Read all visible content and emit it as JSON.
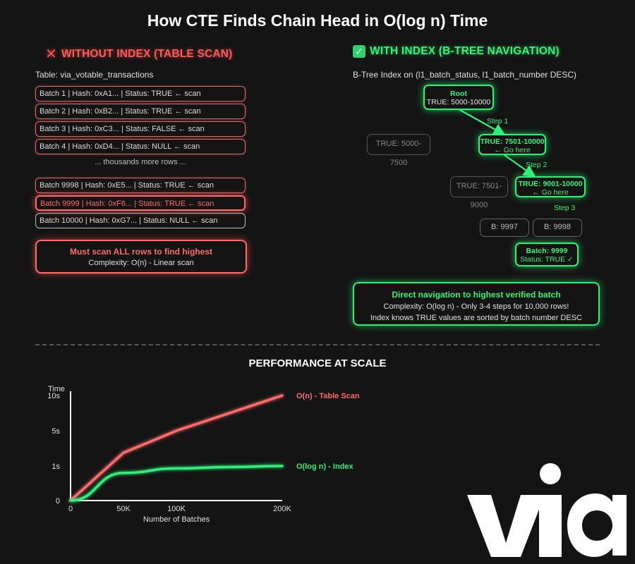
{
  "title": "How CTE Finds Chain Head in O(log n) Time",
  "left": {
    "heading": "WITHOUT INDEX (TABLE SCAN)",
    "heading_icon": "cross-mark-icon",
    "table_label": "Table: via_votable_transactions",
    "rows": [
      "Batch 1 | Hash: 0xA1... | Status: TRUE ← scan",
      "Batch 2 | Hash: 0xB2... | Status: TRUE ← scan",
      "Batch 3 | Hash: 0xC3... | Status: FALSE ← scan",
      "Batch 4 | Hash: 0xD4... | Status: NULL ← scan"
    ],
    "more_rows": "... thousands more rows ...",
    "rows_end": [
      "Batch 9998 | Hash: 0xE5... | Status: TRUE ← scan",
      "Batch 9999 | Hash: 0xF6... | Status: TRUE ← scan",
      "Batch 10000 | Hash: 0xG7... | Status: NULL ← scan"
    ],
    "summary_title": "Must scan ALL rows to find highest",
    "summary_complexity": "Complexity: O(n) - Linear scan"
  },
  "right": {
    "heading": "WITH INDEX (B-TREE NAVIGATION)",
    "heading_icon": "check-mark-icon",
    "index_label": "B-Tree Index on (l1_batch_status, l1_batch_number DESC)",
    "root": {
      "line1": "Root",
      "line2": "TRUE: 5000-10000"
    },
    "left_child": "TRUE: 5000-7500",
    "step1": "Step 1",
    "node2": {
      "line1": "TRUE: 7501-10000",
      "line2": "← Go here"
    },
    "step2": "Step 2",
    "sibling2": "TRUE: 7501-9000",
    "node3": {
      "line1": "TRUE: 9001-10000",
      "line2": "← Go here"
    },
    "step3": "Step 3",
    "leaf1": "B: 9997",
    "leaf2": "B: 9998",
    "target": {
      "line1": "Batch: 9999",
      "line2": "Status: TRUE ✓"
    },
    "summary_title": "Direct navigation to highest verified batch",
    "summary_complexity": "Complexity: O(log n) - Only 3-4 steps for 10,000 rows!",
    "summary_note": "Index knows TRUE values are sorted by batch number DESC"
  },
  "performance_title": "PERFORMANCE AT SCALE",
  "chart_data": {
    "type": "line",
    "ylabel": "Time",
    "xlabel": "Number of Batches",
    "x": [
      0,
      50000,
      100000,
      150000,
      200000
    ],
    "x_tick_labels": [
      "0",
      "50K",
      "100K",
      "200K"
    ],
    "x_tick_values": [
      0,
      50000,
      100000,
      200000
    ],
    "y_tick_labels": [
      "0",
      "1s",
      "5s",
      "10s"
    ],
    "series": [
      {
        "name": "O(n) - Table Scan",
        "color": "#ff6b6b",
        "values": [
          0,
          2.5,
          5,
          7.5,
          10
        ]
      },
      {
        "name": "O(log n) - Index",
        "color": "#2ff07a",
        "values": [
          0,
          0.8,
          0.93,
          0.97,
          1.0
        ]
      }
    ]
  },
  "colors": {
    "red": "#ff6b6b",
    "green": "#2ff07a",
    "background": "#141414"
  },
  "logo_text": "via"
}
